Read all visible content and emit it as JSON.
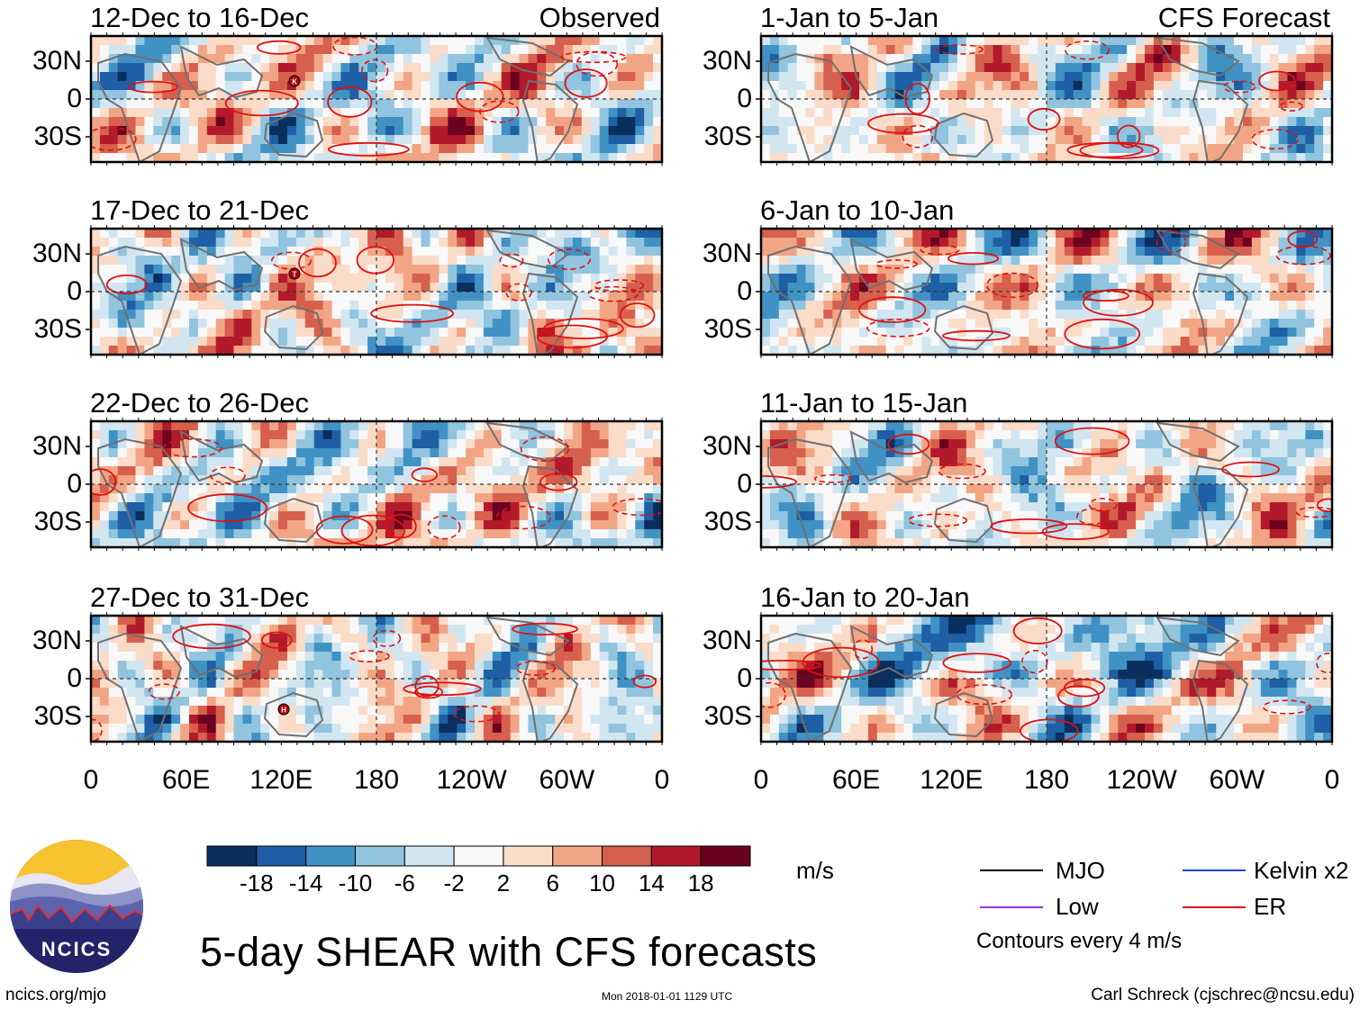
{
  "map": {
    "panels": [
      {
        "title": "12-Dec to 16-Dec",
        "tag": "Observed",
        "seed": 11,
        "marker": "K"
      },
      {
        "title": "1-Jan to 5-Jan",
        "tag": "CFS Forecast",
        "seed": 21,
        "marker": ""
      },
      {
        "title": "17-Dec to 21-Dec",
        "tag": "",
        "seed": 12,
        "marker": "T"
      },
      {
        "title": "6-Jan to 10-Jan",
        "tag": "",
        "seed": 22,
        "marker": ""
      },
      {
        "title": "22-Dec to 26-Dec",
        "tag": "",
        "seed": 13,
        "marker": ""
      },
      {
        "title": "11-Jan to 15-Jan",
        "tag": "",
        "seed": 23,
        "marker": ""
      },
      {
        "title": "27-Dec to 31-Dec",
        "tag": "",
        "seed": 14,
        "marker": "H"
      },
      {
        "title": "16-Jan to 20-Jan",
        "tag": "",
        "seed": 24,
        "marker": ""
      }
    ],
    "lat_labels": [
      "30N",
      "0",
      "30S"
    ],
    "lon_labels": [
      "0",
      "60E",
      "120E",
      "180",
      "120W",
      "60W",
      "0"
    ],
    "colorbar": {
      "colors": [
        "#0a2f5e",
        "#1e5fa5",
        "#4092c4",
        "#91c4de",
        "#d2e6f1",
        "#f8f8f8",
        "#fbdcc8",
        "#f2a584",
        "#d6604d",
        "#b21a2b",
        "#6a0220"
      ],
      "ticks": [
        "-18",
        "-14",
        "-10",
        "-6",
        "-2",
        "2",
        "6",
        "10",
        "14",
        "18"
      ],
      "units": "m/s"
    },
    "legend": [
      {
        "label": "MJO",
        "color": "#000000"
      },
      {
        "label": "Kelvin x2",
        "color": "#1f3fd0"
      },
      {
        "label": "Low",
        "color": "#9b30e0"
      },
      {
        "label": "ER",
        "color": "#e01010"
      }
    ],
    "contour_note": "Contours every 4 m/s",
    "title": "5-day SHEAR with CFS forecasts",
    "logo_text": "NCICS",
    "footer_left": "ncics.org/mjo",
    "footer_center": "Mon 2018-01-01 1129 UTC",
    "footer_right": "Carl Schreck (cjschrec@ncsu.edu)"
  }
}
